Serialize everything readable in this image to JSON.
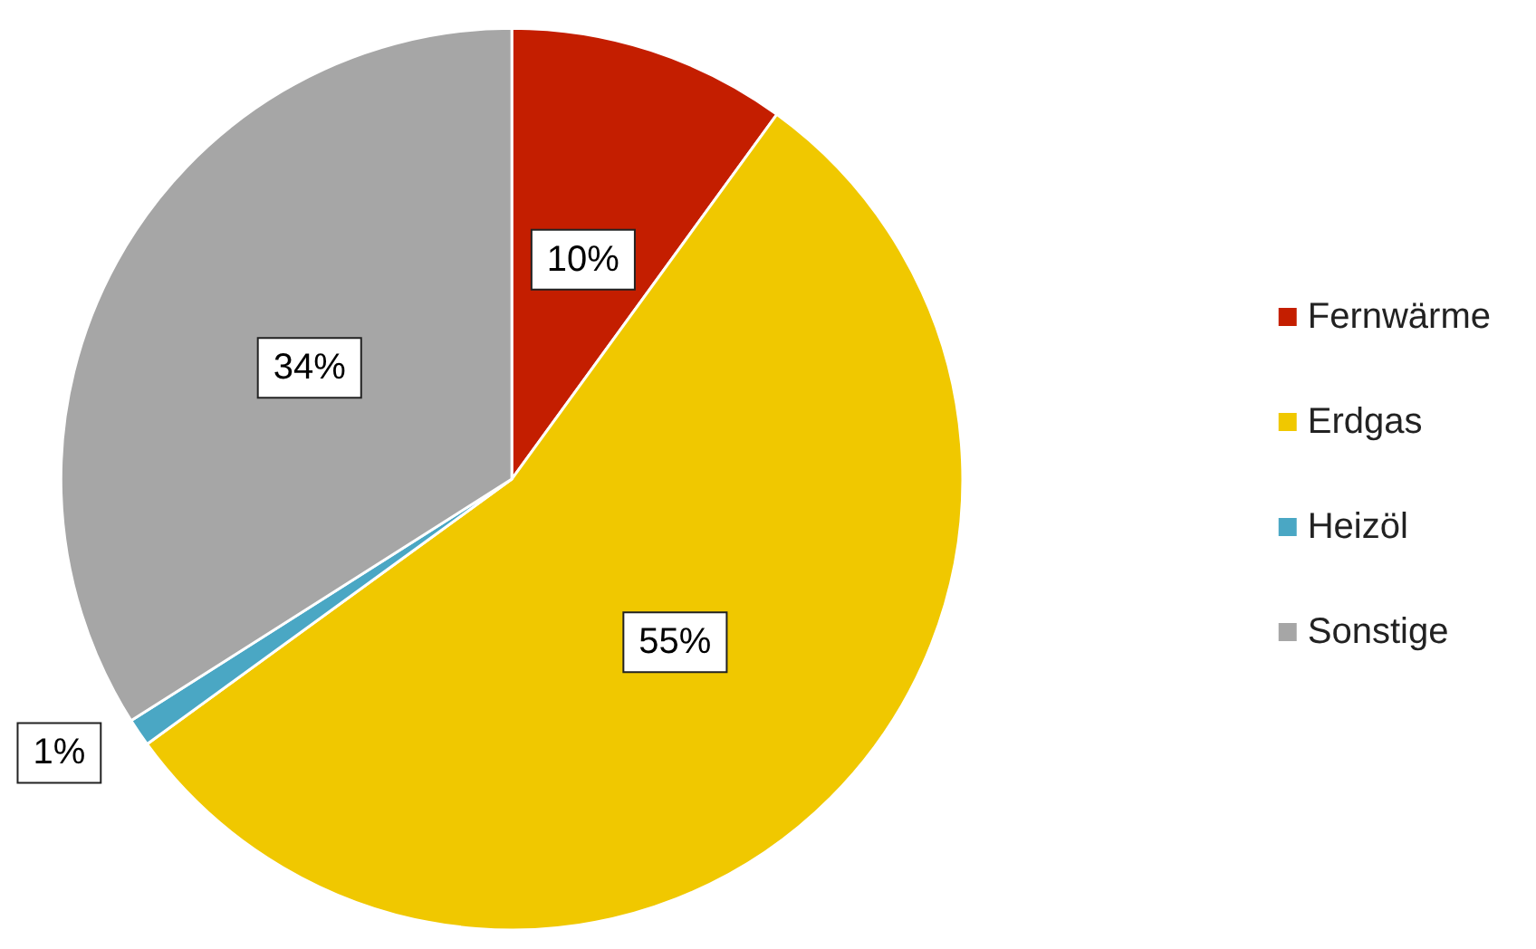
{
  "chart_data": {
    "type": "pie",
    "categories": [
      "Fernwärme",
      "Erdgas",
      "Heizöl",
      "Sonstige"
    ],
    "values": [
      10,
      55,
      1,
      34
    ],
    "colors": [
      "#c41e00",
      "#f0c800",
      "#4aa7c4",
      "#a6a6a6"
    ],
    "value_labels": [
      "10%",
      "55%",
      "1%",
      "34%"
    ],
    "legend": "right"
  }
}
